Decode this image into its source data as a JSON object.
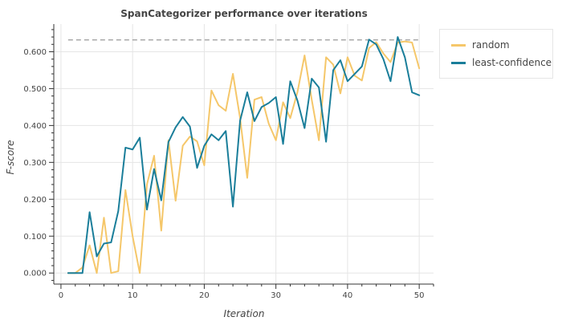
{
  "chart_data": {
    "type": "line",
    "title": "SpanCategorizer performance over iterations",
    "xlabel": "Iteration",
    "ylabel": "F-score",
    "xlim": [
      -1,
      52
    ],
    "ylim": [
      -0.03,
      0.675
    ],
    "x_ticks": [
      0,
      10,
      20,
      30,
      40,
      50
    ],
    "x_tick_labels": [
      "0",
      "10",
      "20",
      "30",
      "40",
      "50"
    ],
    "y_ticks": [
      0,
      0.1,
      0.2,
      0.3,
      0.4,
      0.5,
      0.6
    ],
    "y_tick_labels": [
      "0.000",
      "0.100",
      "0.200",
      "0.300",
      "0.400",
      "0.500",
      "0.600"
    ],
    "grid": true,
    "legend_position": "right",
    "reference_line": {
      "y": 0.632,
      "x_range": [
        1,
        50
      ],
      "style": "dashed",
      "color": "#999999"
    },
    "series": [
      {
        "name": "random",
        "color": "#f5c76a",
        "x": [
          1,
          2,
          3,
          4,
          5,
          6,
          7,
          8,
          9,
          10,
          11,
          12,
          13,
          14,
          15,
          16,
          17,
          18,
          19,
          20,
          21,
          22,
          23,
          24,
          25,
          26,
          27,
          28,
          29,
          30,
          31,
          32,
          33,
          34,
          35,
          36,
          37,
          38,
          39,
          40,
          41,
          42,
          43,
          44,
          45,
          46,
          47,
          48,
          49,
          50
        ],
        "values": [
          0.0,
          0.0,
          0.015,
          0.075,
          0.0,
          0.15,
          0.0,
          0.005,
          0.225,
          0.1,
          0.0,
          0.24,
          0.318,
          0.115,
          0.36,
          0.196,
          0.345,
          0.37,
          0.357,
          0.292,
          0.495,
          0.455,
          0.44,
          0.54,
          0.42,
          0.258,
          0.47,
          0.477,
          0.405,
          0.36,
          0.463,
          0.42,
          0.49,
          0.59,
          0.47,
          0.36,
          0.585,
          0.565,
          0.487,
          0.585,
          0.535,
          0.522,
          0.61,
          0.626,
          0.595,
          0.572,
          0.625,
          0.628,
          0.625,
          0.555
        ]
      },
      {
        "name": "least-confidence",
        "color": "#1a7e9a",
        "x": [
          1,
          2,
          3,
          4,
          5,
          6,
          7,
          8,
          9,
          10,
          11,
          12,
          13,
          14,
          15,
          16,
          17,
          18,
          19,
          20,
          21,
          22,
          23,
          24,
          25,
          26,
          27,
          28,
          29,
          30,
          31,
          32,
          33,
          34,
          35,
          36,
          37,
          38,
          39,
          40,
          41,
          42,
          43,
          44,
          45,
          46,
          47,
          48,
          49,
          50
        ],
        "values": [
          0.0,
          0.0,
          0.0,
          0.165,
          0.045,
          0.08,
          0.083,
          0.168,
          0.34,
          0.335,
          0.367,
          0.172,
          0.282,
          0.197,
          0.355,
          0.395,
          0.423,
          0.397,
          0.285,
          0.345,
          0.376,
          0.36,
          0.385,
          0.18,
          0.413,
          0.49,
          0.412,
          0.45,
          0.461,
          0.477,
          0.35,
          0.52,
          0.468,
          0.393,
          0.527,
          0.503,
          0.356,
          0.55,
          0.577,
          0.52,
          0.54,
          0.56,
          0.633,
          0.62,
          0.58,
          0.52,
          0.64,
          0.585,
          0.49,
          0.482
        ]
      }
    ]
  }
}
